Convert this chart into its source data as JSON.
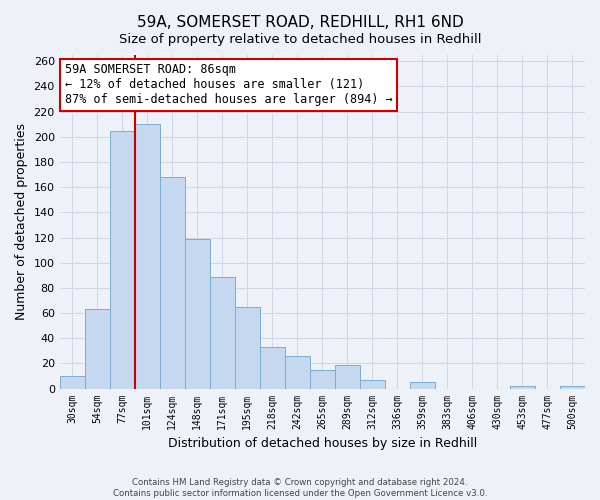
{
  "title": "59A, SOMERSET ROAD, REDHILL, RH1 6ND",
  "subtitle": "Size of property relative to detached houses in Redhill",
  "xlabel": "Distribution of detached houses by size in Redhill",
  "ylabel": "Number of detached properties",
  "bin_labels": [
    "30sqm",
    "54sqm",
    "77sqm",
    "101sqm",
    "124sqm",
    "148sqm",
    "171sqm",
    "195sqm",
    "218sqm",
    "242sqm",
    "265sqm",
    "289sqm",
    "312sqm",
    "336sqm",
    "359sqm",
    "383sqm",
    "406sqm",
    "430sqm",
    "453sqm",
    "477sqm",
    "500sqm"
  ],
  "bar_heights": [
    10,
    63,
    205,
    210,
    168,
    119,
    89,
    65,
    33,
    26,
    15,
    19,
    7,
    0,
    5,
    0,
    0,
    0,
    2,
    0,
    2
  ],
  "bar_color": "#c5d8f0",
  "bar_edge_color": "#7aadd4",
  "vline_color": "#cc0000",
  "vline_x": 2.5,
  "annotation_text": "59A SOMERSET ROAD: 86sqm\n← 12% of detached houses are smaller (121)\n87% of semi-detached houses are larger (894) →",
  "annotation_box_color": "white",
  "annotation_box_edge_color": "#cc0000",
  "ylim": [
    0,
    265
  ],
  "yticks": [
    0,
    20,
    40,
    60,
    80,
    100,
    120,
    140,
    160,
    180,
    200,
    220,
    240,
    260
  ],
  "footnote": "Contains HM Land Registry data © Crown copyright and database right 2024.\nContains public sector information licensed under the Open Government Licence v3.0.",
  "bg_color": "#eef2f8",
  "grid_color": "#d0d8e8",
  "title_fontsize": 11,
  "subtitle_fontsize": 9.5
}
